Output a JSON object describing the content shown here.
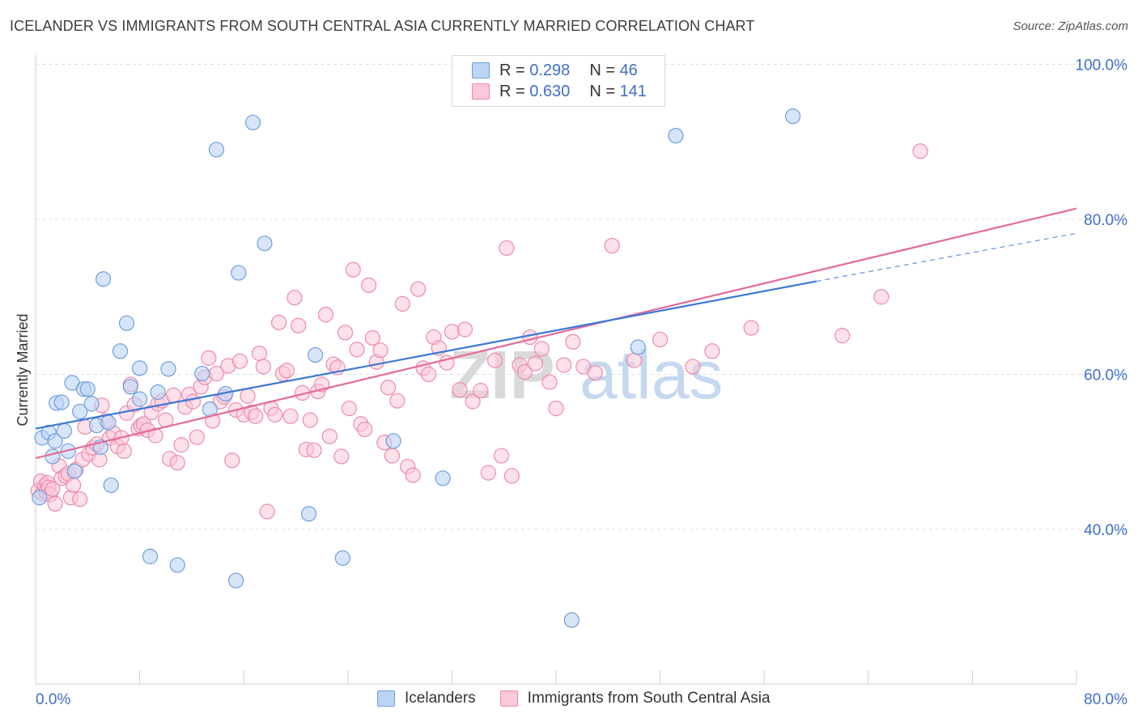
{
  "header": {
    "title": "ICELANDER VS IMMIGRANTS FROM SOUTH CENTRAL ASIA CURRENTLY MARRIED CORRELATION CHART",
    "source": "Source: ZipAtlas.com"
  },
  "legend": {
    "rows": [
      {
        "r_label": "R =",
        "r_value": "0.298",
        "n_label": "N =",
        "n_value": "46"
      },
      {
        "r_label": "R =",
        "r_value": "0.630",
        "n_label": "N =",
        "n_value": "141"
      }
    ],
    "bottom": [
      "Icelanders",
      "Immigrants from South Central Asia"
    ]
  },
  "watermark": {
    "part1": "ZIP",
    "part2": "atlas"
  },
  "colors": {
    "blue_fill": "#bcd4f5",
    "blue_stroke": "#6f9fde",
    "blue_line": "#3a78d6",
    "pink_fill": "#fbc8d8",
    "pink_stroke": "#ec8aaa",
    "pink_line": "#e56a97",
    "axis_label": "#3f6fc9",
    "grid": "#dedede"
  },
  "chart_data": {
    "type": "scatter",
    "title": "ICELANDER VS IMMIGRANTS FROM SOUTH CENTRAL ASIA CURRENTLY MARRIED CORRELATION CHART",
    "xlabel": "",
    "ylabel": "Currently Married",
    "xlim": [
      0,
      80
    ],
    "ylim": [
      20,
      100
    ],
    "x_ticks": [
      0,
      80
    ],
    "x_tick_labels": [
      "0.0%",
      "80.0%"
    ],
    "y_ticks": [
      40,
      60,
      80,
      100
    ],
    "y_tick_labels": [
      "40.0%",
      "60.0%",
      "80.0%",
      "100.0%"
    ],
    "grid": true,
    "legend_position": "top-center",
    "series": [
      {
        "name": "Icelanders",
        "R": 0.298,
        "N": 46,
        "trend": {
          "x0": 0,
          "y0": 53.0,
          "x1": 60,
          "y1": 72.0,
          "dash_to_x": 80,
          "dash_to_y": 78.2
        },
        "points": [
          [
            0.5,
            51.8
          ],
          [
            1.0,
            52.5
          ],
          [
            1.3,
            49.4
          ],
          [
            1.5,
            51.4
          ],
          [
            1.6,
            56.3
          ],
          [
            2.0,
            56.4
          ],
          [
            2.2,
            52.7
          ],
          [
            2.5,
            50.1
          ],
          [
            2.8,
            58.9
          ],
          [
            3.0,
            47.5
          ],
          [
            3.4,
            55.2
          ],
          [
            3.7,
            58.1
          ],
          [
            4.0,
            58.1
          ],
          [
            4.3,
            56.2
          ],
          [
            4.7,
            53.4
          ],
          [
            5.0,
            50.6
          ],
          [
            5.2,
            72.3
          ],
          [
            5.6,
            53.8
          ],
          [
            5.8,
            45.7
          ],
          [
            6.5,
            63.0
          ],
          [
            7.0,
            66.6
          ],
          [
            7.3,
            58.4
          ],
          [
            8.0,
            60.8
          ],
          [
            8.0,
            56.8
          ],
          [
            8.8,
            36.5
          ],
          [
            9.4,
            57.7
          ],
          [
            10.2,
            60.7
          ],
          [
            10.9,
            35.4
          ],
          [
            12.8,
            60.1
          ],
          [
            13.4,
            55.5
          ],
          [
            13.9,
            89.0
          ],
          [
            14.6,
            57.5
          ],
          [
            15.4,
            33.4
          ],
          [
            15.6,
            73.1
          ],
          [
            16.7,
            92.5
          ],
          [
            17.6,
            76.9
          ],
          [
            21.0,
            42.0
          ],
          [
            21.5,
            62.5
          ],
          [
            23.6,
            36.3
          ],
          [
            27.5,
            51.4
          ],
          [
            31.3,
            46.6
          ],
          [
            41.2,
            28.3
          ],
          [
            46.3,
            63.5
          ],
          [
            49.2,
            90.8
          ],
          [
            58.2,
            93.3
          ],
          [
            0.3,
            44.1
          ]
        ]
      },
      {
        "name": "Immigrants from South Central Asia",
        "R": 0.63,
        "N": 141,
        "trend": {
          "x0": 0,
          "y0": 49.2,
          "x1": 80,
          "y1": 81.4
        },
        "points": [
          [
            0.2,
            45.0
          ],
          [
            0.4,
            46.2
          ],
          [
            0.5,
            44.6
          ],
          [
            0.7,
            45.6
          ],
          [
            0.8,
            44.8
          ],
          [
            0.9,
            46.0
          ],
          [
            1.0,
            45.4
          ],
          [
            1.1,
            44.5
          ],
          [
            1.3,
            45.2
          ],
          [
            1.5,
            43.3
          ],
          [
            1.8,
            48.2
          ],
          [
            2.0,
            46.6
          ],
          [
            2.3,
            46.9
          ],
          [
            2.5,
            47.2
          ],
          [
            2.7,
            44.1
          ],
          [
            2.9,
            45.7
          ],
          [
            3.1,
            47.7
          ],
          [
            3.4,
            43.9
          ],
          [
            3.6,
            49.0
          ],
          [
            3.8,
            53.2
          ],
          [
            4.1,
            49.7
          ],
          [
            4.4,
            50.5
          ],
          [
            4.7,
            51.0
          ],
          [
            4.9,
            49.0
          ],
          [
            5.1,
            56.0
          ],
          [
            5.4,
            54.0
          ],
          [
            5.7,
            51.8
          ],
          [
            6.0,
            52.4
          ],
          [
            6.3,
            50.7
          ],
          [
            6.6,
            51.8
          ],
          [
            6.8,
            50.1
          ],
          [
            7.0,
            55.0
          ],
          [
            7.3,
            58.7
          ],
          [
            7.6,
            56.1
          ],
          [
            7.9,
            53.0
          ],
          [
            8.1,
            53.4
          ],
          [
            8.3,
            53.6
          ],
          [
            8.6,
            52.8
          ],
          [
            8.9,
            55.1
          ],
          [
            9.2,
            52.1
          ],
          [
            9.4,
            56.2
          ],
          [
            9.7,
            56.6
          ],
          [
            10.0,
            54.1
          ],
          [
            10.3,
            49.1
          ],
          [
            10.6,
            57.3
          ],
          [
            10.9,
            48.6
          ],
          [
            11.2,
            50.9
          ],
          [
            11.5,
            55.8
          ],
          [
            11.8,
            57.4
          ],
          [
            12.1,
            56.5
          ],
          [
            12.4,
            51.9
          ],
          [
            12.7,
            58.4
          ],
          [
            13.0,
            59.6
          ],
          [
            13.3,
            62.1
          ],
          [
            13.6,
            54.0
          ],
          [
            13.9,
            60.1
          ],
          [
            14.2,
            56.5
          ],
          [
            14.5,
            57.1
          ],
          [
            14.8,
            61.1
          ],
          [
            15.1,
            48.9
          ],
          [
            15.4,
            55.4
          ],
          [
            15.7,
            61.7
          ],
          [
            16.0,
            54.8
          ],
          [
            16.3,
            57.2
          ],
          [
            16.6,
            55.1
          ],
          [
            16.9,
            54.6
          ],
          [
            17.2,
            62.7
          ],
          [
            17.5,
            61.0
          ],
          [
            17.8,
            42.3
          ],
          [
            18.1,
            55.6
          ],
          [
            18.4,
            54.8
          ],
          [
            18.7,
            66.7
          ],
          [
            19.0,
            60.1
          ],
          [
            19.3,
            60.5
          ],
          [
            19.6,
            54.6
          ],
          [
            19.9,
            69.9
          ],
          [
            20.2,
            66.3
          ],
          [
            20.5,
            57.6
          ],
          [
            20.8,
            50.3
          ],
          [
            21.1,
            54.1
          ],
          [
            21.4,
            50.2
          ],
          [
            21.7,
            57.8
          ],
          [
            22.0,
            58.7
          ],
          [
            22.3,
            67.7
          ],
          [
            22.6,
            52.0
          ],
          [
            22.9,
            61.3
          ],
          [
            23.2,
            60.9
          ],
          [
            23.5,
            49.4
          ],
          [
            23.8,
            65.4
          ],
          [
            24.1,
            55.6
          ],
          [
            24.4,
            73.5
          ],
          [
            24.7,
            63.2
          ],
          [
            25.0,
            53.6
          ],
          [
            25.3,
            52.9
          ],
          [
            25.6,
            71.5
          ],
          [
            25.9,
            64.7
          ],
          [
            26.2,
            61.6
          ],
          [
            26.5,
            63.1
          ],
          [
            26.8,
            51.2
          ],
          [
            27.1,
            58.3
          ],
          [
            27.4,
            49.5
          ],
          [
            27.8,
            56.6
          ],
          [
            28.2,
            69.1
          ],
          [
            28.6,
            48.1
          ],
          [
            29.0,
            47.0
          ],
          [
            29.4,
            71.0
          ],
          [
            29.8,
            60.8
          ],
          [
            30.2,
            60.0
          ],
          [
            30.6,
            64.8
          ],
          [
            31.0,
            63.4
          ],
          [
            31.6,
            61.5
          ],
          [
            32.0,
            65.5
          ],
          [
            32.6,
            58.0
          ],
          [
            33.0,
            65.8
          ],
          [
            33.6,
            56.5
          ],
          [
            34.2,
            57.9
          ],
          [
            34.8,
            47.3
          ],
          [
            35.3,
            61.8
          ],
          [
            35.8,
            49.5
          ],
          [
            36.2,
            76.3
          ],
          [
            36.6,
            46.9
          ],
          [
            37.2,
            61.2
          ],
          [
            37.6,
            60.3
          ],
          [
            38.0,
            64.8
          ],
          [
            38.4,
            61.4
          ],
          [
            38.9,
            63.3
          ],
          [
            39.5,
            59.0
          ],
          [
            40.0,
            55.6
          ],
          [
            40.6,
            61.2
          ],
          [
            41.3,
            64.2
          ],
          [
            42.1,
            61.0
          ],
          [
            43.0,
            60.2
          ],
          [
            44.3,
            76.6
          ],
          [
            46.0,
            61.8
          ],
          [
            48.0,
            64.5
          ],
          [
            50.5,
            61.0
          ],
          [
            52.0,
            63.0
          ],
          [
            68.0,
            88.8
          ],
          [
            62.0,
            65.0
          ],
          [
            55.0,
            66.0
          ],
          [
            65.0,
            70.0
          ]
        ]
      }
    ]
  }
}
